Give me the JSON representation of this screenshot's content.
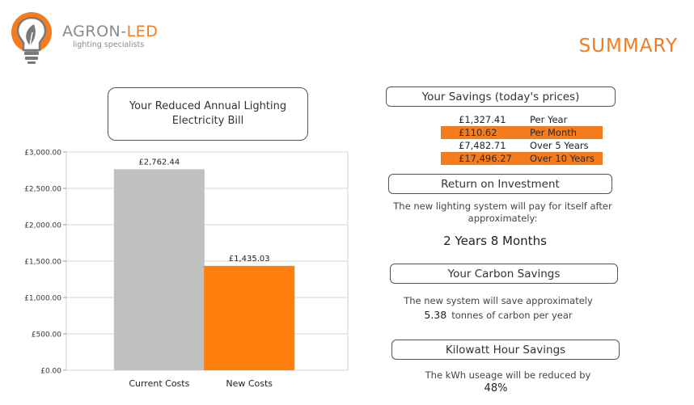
{
  "brand": {
    "name_main": "AGRON-",
    "name_accent": "LED",
    "tagline": "lighting specialists"
  },
  "page_heading": "SUMMARY",
  "colors": {
    "accent": "#f47c1e",
    "bar_current": "#c0c0c0",
    "bar_new": "#ff7f0e"
  },
  "chart_data": {
    "type": "bar",
    "title": "Your Reduced Annual Lighting Electricity Bill",
    "categories": [
      "Current Costs",
      "New Costs"
    ],
    "values": [
      2762.44,
      1435.03
    ],
    "value_labels": [
      "£2,762.44",
      "£1,435.03"
    ],
    "ylim": [
      0,
      3000
    ],
    "yticks": [
      "£0.00",
      "£500.00",
      "£1,000.00",
      "£1,500.00",
      "£2,000.00",
      "£2,500.00",
      "£3,000.00"
    ],
    "grid": true,
    "xlabel": "",
    "ylabel": ""
  },
  "savings": {
    "heading": "Your Savings (today's prices)",
    "rows": [
      {
        "amount": "£1,327.41",
        "period": "Per Year"
      },
      {
        "amount": "£110.62",
        "period": "Per Month"
      },
      {
        "amount": "£7,482.71",
        "period": "Over 5 Years"
      },
      {
        "amount": "£17,496.27",
        "period": "Over 10 Years"
      }
    ]
  },
  "roi": {
    "heading": "Return on Investment",
    "text": "The new lighting system will pay for itself after approximately:",
    "value": "2 Years 8 Months"
  },
  "carbon": {
    "heading": "Your Carbon Savings",
    "text": "The new system will save approximately",
    "value": "5.38",
    "suffix": "tonnes of carbon per year"
  },
  "kwh": {
    "heading": "Kilowatt Hour Savings",
    "text": "The kWh useage will be reduced by",
    "value": "48%"
  }
}
